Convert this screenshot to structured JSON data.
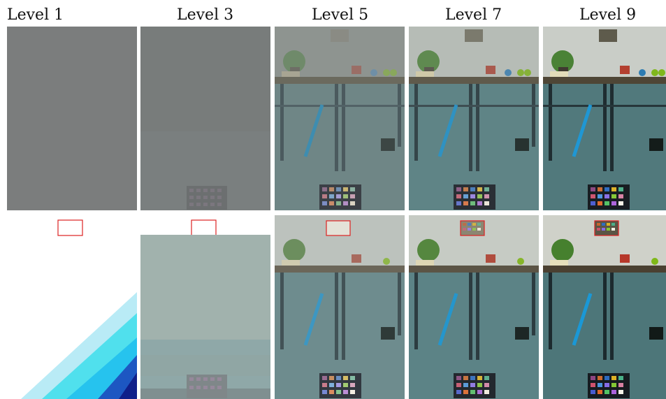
{
  "columns": [
    {
      "label": "Level 1"
    },
    {
      "label": "Level 3"
    },
    {
      "label": "Level 5"
    },
    {
      "label": "Level 7"
    },
    {
      "label": "Level 9"
    }
  ]
}
